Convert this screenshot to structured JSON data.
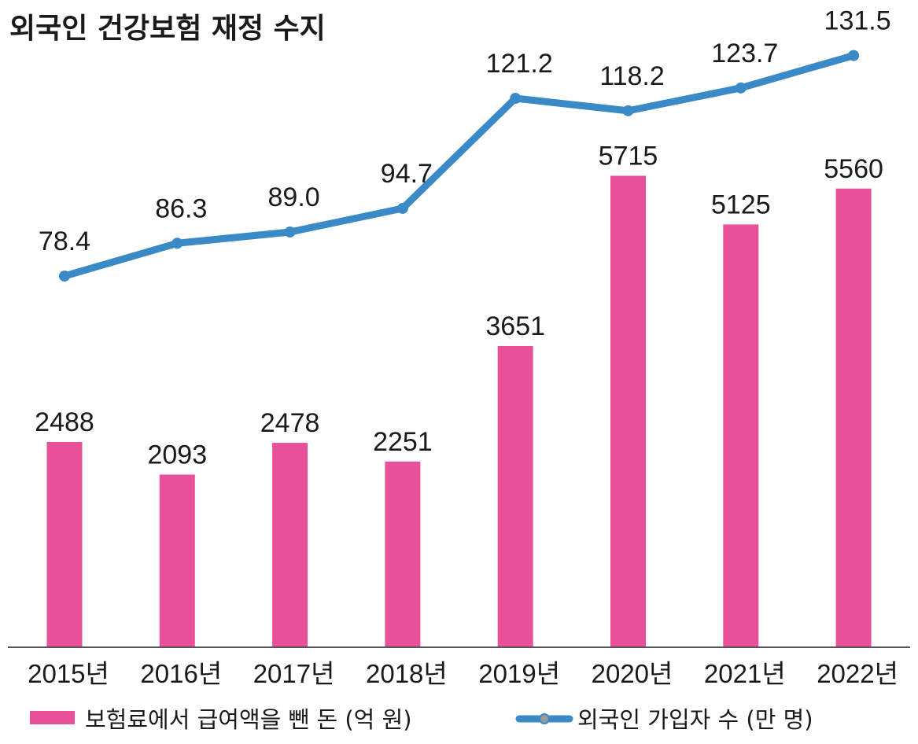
{
  "title": "외국인 건강보험 재정 수지",
  "chart_data": {
    "type": "bar+line",
    "title": "외국인 건강보험 재정 수지",
    "categories": [
      "2015년",
      "2016년",
      "2017년",
      "2018년",
      "2019년",
      "2020년",
      "2021년",
      "2022년"
    ],
    "series": [
      {
        "name": "보험료에서 급여액을 뺀 돈 (억 원)",
        "type": "bar",
        "values": [
          2488,
          2093,
          2478,
          2251,
          3651,
          5715,
          5125,
          5560
        ],
        "labels": [
          "2488",
          "2093",
          "2478",
          "2251",
          "3651",
          "5715",
          "5125",
          "5560"
        ],
        "color": "#e8519a"
      },
      {
        "name": "외국인 가입자 수 (만 명)",
        "type": "line",
        "values": [
          78.4,
          86.3,
          89.0,
          94.7,
          121.2,
          118.2,
          123.7,
          131.5
        ],
        "labels": [
          "78.4",
          "86.3",
          "89.0",
          "94.7",
          "121.2",
          "118.2",
          "123.7",
          "131.5"
        ],
        "color": "#3a8ac8"
      }
    ],
    "bar_ylim": [
      0,
      6500
    ],
    "line_ylim": [
      40,
      140
    ],
    "legend": "bottom"
  },
  "colors": {
    "bar": "#e8519a",
    "line": "#3a8ac8",
    "axis": "#555555",
    "text": "#1a1a1a"
  }
}
